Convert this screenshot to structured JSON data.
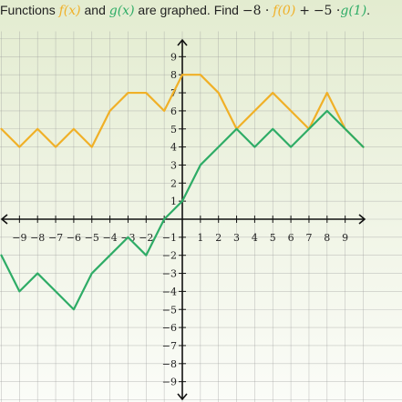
{
  "question": {
    "prefix": "Functions",
    "f_name": "f(x)",
    "and": "and",
    "g_name": "g(x)",
    "middle": "are graphed. Find",
    "expression_part1": "−8 ·",
    "f_term": "f(0)",
    "operator": "+",
    "expression_part2": "−5 ·",
    "g_term": "g(1)",
    "end": "."
  },
  "colors": {
    "f": "#f0b027",
    "g": "#2eac66",
    "grid": "#9a9a9a",
    "axis": "#111111"
  },
  "chart_data": {
    "type": "line",
    "title": "",
    "xlabel": "",
    "ylabel": "",
    "xlim": [
      -10,
      10
    ],
    "ylim": [
      -10,
      10
    ],
    "grid": true,
    "x_ticks": [
      -9,
      -8,
      -7,
      -6,
      -5,
      -4,
      -3,
      -2,
      1,
      2,
      3,
      4,
      5,
      6,
      7,
      8,
      9
    ],
    "y_ticks": [
      9,
      8,
      7,
      6,
      5,
      4,
      3,
      2,
      1,
      -1,
      -2,
      -3,
      -4,
      -5,
      -6,
      -7,
      -8,
      -9
    ],
    "series": [
      {
        "name": "f",
        "x": [
          -10,
          -9,
          -8,
          -7,
          -6,
          -5,
          -4,
          -3,
          -2,
          -1,
          0,
          1,
          2,
          3,
          4,
          5,
          6,
          7,
          8,
          9,
          10
        ],
        "y": [
          5,
          4,
          5,
          4,
          5,
          4,
          6,
          7,
          7,
          6,
          8,
          8,
          7,
          5,
          6,
          7,
          6,
          5,
          7,
          5,
          4
        ]
      },
      {
        "name": "g",
        "x": [
          -10,
          -9,
          -8,
          -7,
          -6,
          -5,
          -4,
          -3,
          -2,
          -1,
          0,
          1,
          2,
          3,
          4,
          5,
          6,
          7,
          8,
          9,
          10
        ],
        "y": [
          -2,
          -4,
          -3,
          -4,
          -5,
          -3,
          -2,
          -1,
          -2,
          0,
          1,
          3,
          4,
          5,
          4,
          5,
          4,
          5,
          6,
          5,
          4
        ]
      }
    ]
  }
}
